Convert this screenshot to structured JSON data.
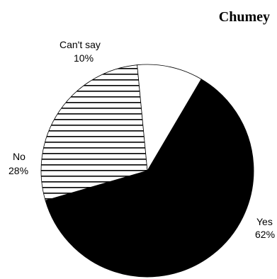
{
  "chart_data": {
    "type": "pie",
    "title": "Chumey",
    "slices": [
      {
        "label": "Yes",
        "percent_label": "62%",
        "value": 62,
        "fill": "solid",
        "color": "#000000"
      },
      {
        "label": "No",
        "percent_label": "28%",
        "value": 28,
        "fill": "horizontal-stripes",
        "color": "#000000"
      },
      {
        "label": "Can't say",
        "percent_label": "10%",
        "value": 10,
        "fill": "solid",
        "color": "#ffffff"
      }
    ]
  }
}
